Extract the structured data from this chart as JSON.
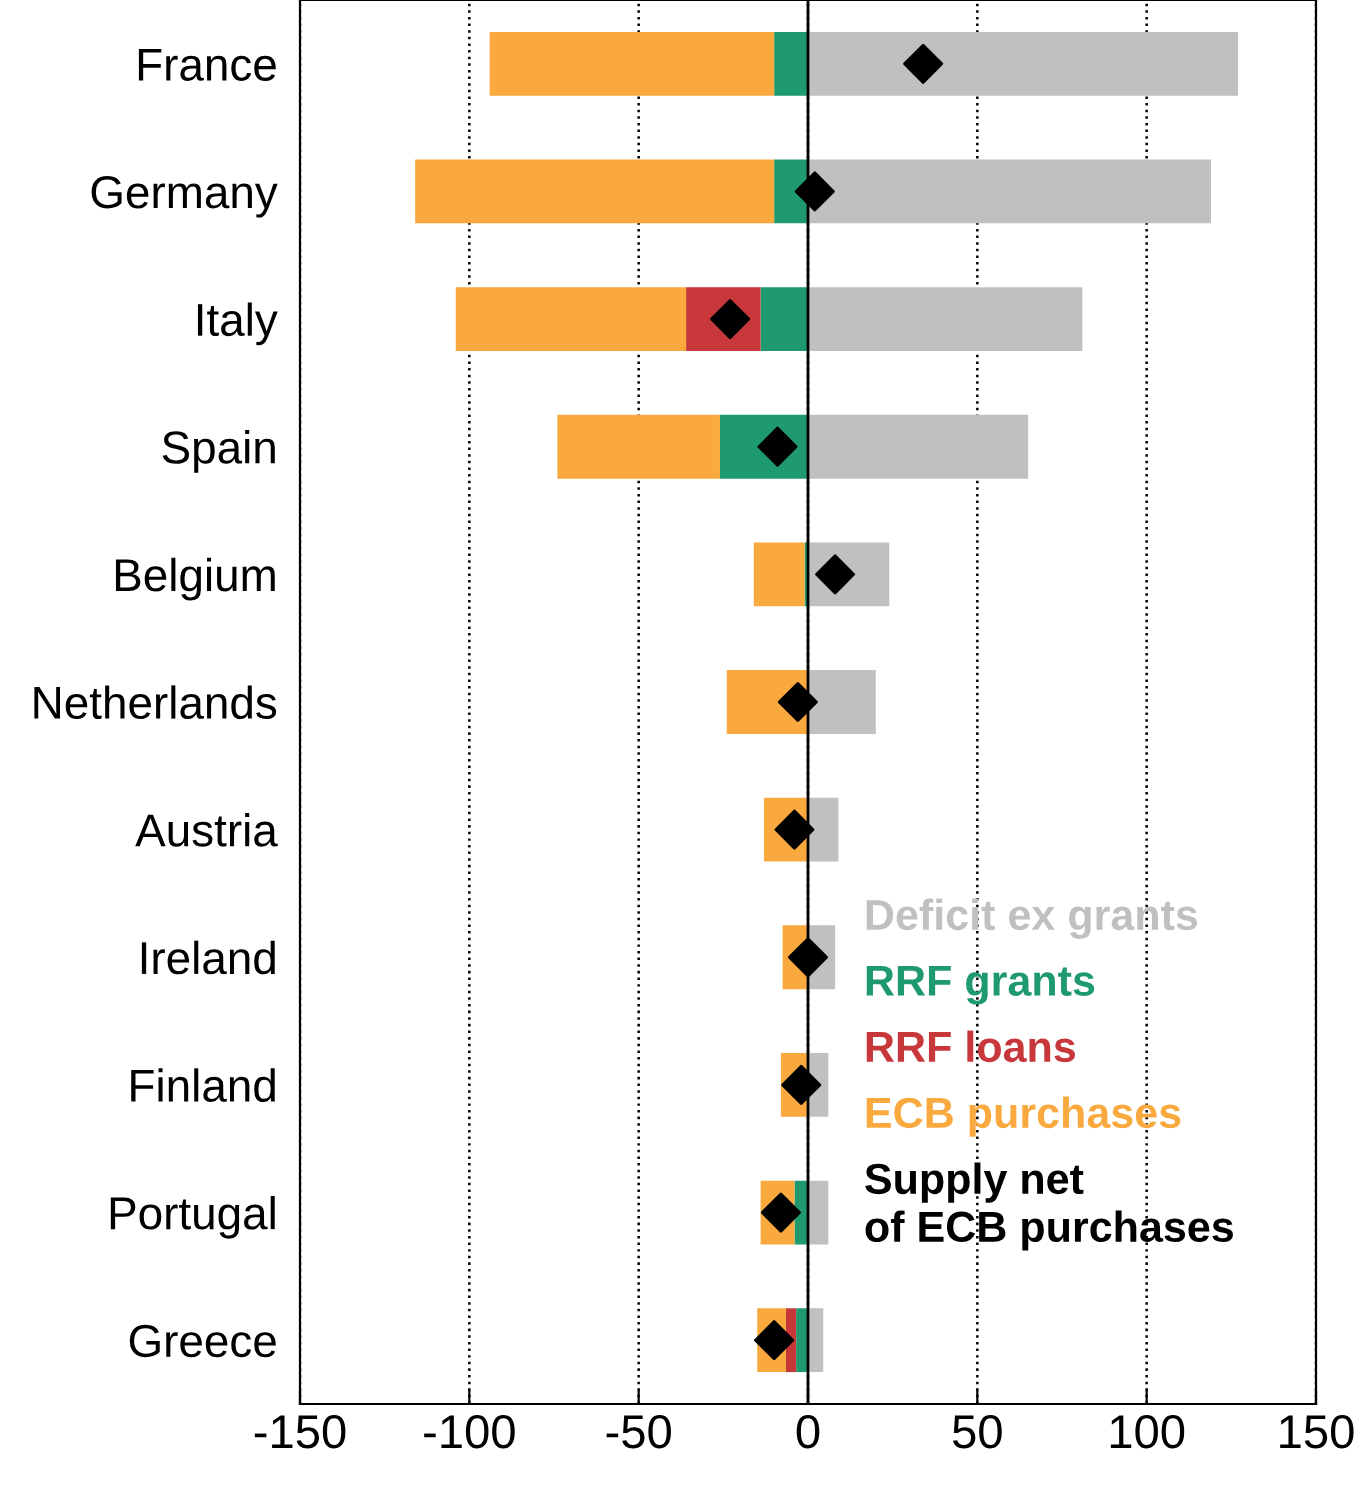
{
  "chart_data": {
    "type": "bar",
    "orientation": "horizontal",
    "stacked": true,
    "categories": [
      "France",
      "Germany",
      "Italy",
      "Spain",
      "Belgium",
      "Netherlands",
      "Austria",
      "Ireland",
      "Finland",
      "Portugal",
      "Greece"
    ],
    "series": [
      {
        "name": "Deficit ex grants",
        "color": "#c0c0c0",
        "values": [
          127,
          119,
          81,
          65,
          24,
          20,
          9,
          8,
          6,
          6,
          4.5
        ]
      },
      {
        "name": "RRF grants",
        "color": "#1e9a6e",
        "values": [
          -10,
          -10,
          -14,
          -26,
          -1,
          null,
          null,
          null,
          null,
          -4,
          -3.5
        ]
      },
      {
        "name": "RRF loans",
        "color": "#c8373a",
        "values": [
          null,
          null,
          -22,
          null,
          null,
          null,
          null,
          null,
          null,
          null,
          -3
        ]
      },
      {
        "name": "ECB purchases",
        "color": "#f9a93d",
        "values": [
          -84,
          -106,
          -68,
          -48,
          -15,
          -24,
          -13,
          -7.5,
          -8,
          -10,
          -8.5
        ]
      },
      {
        "name": "Supply net\nof ECB purchases",
        "type": "scatter",
        "color": "#000000",
        "marker": "diamond",
        "values": [
          34,
          2,
          -23,
          -9,
          8,
          -3,
          -4,
          0,
          -2,
          -8,
          -10
        ]
      }
    ],
    "xlim": [
      -150,
      150
    ],
    "xticks": [
      -150,
      -100,
      -50,
      0,
      50,
      100,
      150
    ],
    "grid": "x",
    "legend": "bottom right",
    "ref_lines": [
      {
        "axis": "x",
        "value": 0,
        "color": "#000000",
        "line_style": "solid"
      }
    ]
  }
}
